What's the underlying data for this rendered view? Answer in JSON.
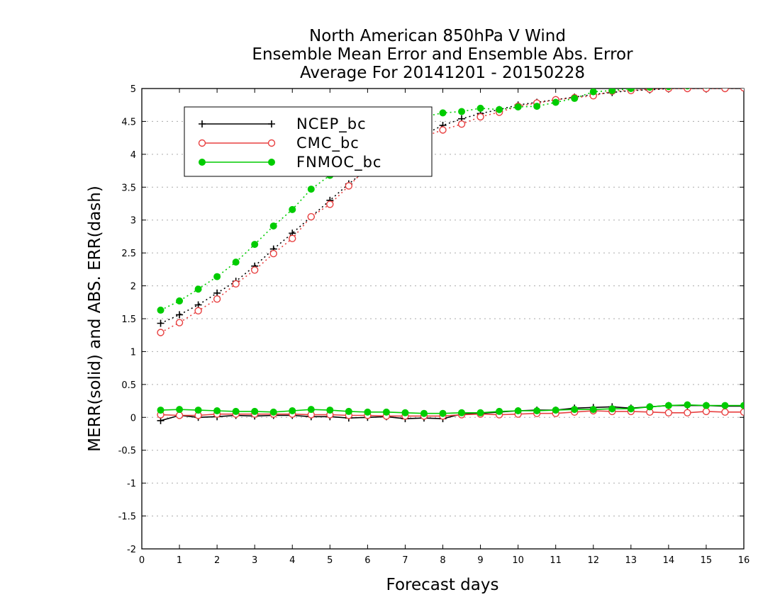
{
  "chart_data": {
    "type": "line",
    "title": [
      "North American 850hPa V Wind",
      "Ensemble Mean Error and Ensemble Abs. Error",
      "Average For 20141201 - 20150228"
    ],
    "xlabel": "Forecast days",
    "ylabel": "MERR(solid) and ABS. ERR(dash)",
    "xlim": [
      0,
      16
    ],
    "ylim": [
      -2,
      5
    ],
    "xticks": [
      "0",
      "1",
      "2",
      "3",
      "4",
      "5",
      "6",
      "7",
      "8",
      "9",
      "10",
      "11",
      "12",
      "13",
      "14",
      "15",
      "16"
    ],
    "yticks": [
      "-2",
      "-1.5",
      "-1",
      "-0.5",
      "0",
      "0.5",
      "1",
      "1.5",
      "2",
      "2.5",
      "3",
      "3.5",
      "4",
      "4.5",
      "5"
    ],
    "grid": true,
    "legend_position": "top-left",
    "x": [
      0.5,
      1,
      1.5,
      2,
      2.5,
      3,
      3.5,
      4,
      4.5,
      5,
      5.5,
      6,
      6.5,
      7,
      7.5,
      8,
      8.5,
      9,
      9.5,
      10,
      10.5,
      11,
      11.5,
      12,
      12.5,
      13,
      13.5,
      14,
      14.5,
      15,
      15.5,
      16
    ],
    "series": [
      {
        "name": "NCEP_bc",
        "color": "#000000",
        "marker": "plus",
        "merr": [
          -0.05,
          0.03,
          0.0,
          0.01,
          0.03,
          0.02,
          0.03,
          0.03,
          0.01,
          0.01,
          -0.01,
          0.0,
          0.01,
          -0.02,
          -0.01,
          -0.02,
          0.05,
          0.06,
          0.08,
          0.1,
          0.11,
          0.11,
          0.14,
          0.15,
          0.16,
          0.14,
          0.16,
          0.18,
          0.18,
          0.18,
          0.17,
          0.17
        ],
        "abserr": [
          1.43,
          1.56,
          1.71,
          1.89,
          2.07,
          2.3,
          2.56,
          2.8,
          3.05,
          3.3,
          3.55,
          3.78,
          3.98,
          4.15,
          4.3,
          4.44,
          4.54,
          4.62,
          4.68,
          4.75,
          4.79,
          4.83,
          4.87,
          4.91,
          4.94,
          4.97,
          4.98,
          5.0,
          5.01,
          5.02,
          5.03,
          5.04
        ]
      },
      {
        "name": "CMC_bc",
        "color": "#e84040",
        "marker": "circle-open",
        "merr": [
          0.04,
          0.03,
          0.03,
          0.05,
          0.05,
          0.05,
          0.05,
          0.05,
          0.04,
          0.04,
          0.03,
          0.03,
          0.02,
          0.02,
          0.02,
          0.02,
          0.04,
          0.05,
          0.04,
          0.05,
          0.06,
          0.06,
          0.08,
          0.1,
          0.09,
          0.09,
          0.08,
          0.07,
          0.07,
          0.09,
          0.08,
          0.08
        ],
        "abserr": [
          1.29,
          1.44,
          1.62,
          1.8,
          2.03,
          2.24,
          2.49,
          2.72,
          3.05,
          3.24,
          3.52,
          3.8,
          4.0,
          4.15,
          4.27,
          4.37,
          4.46,
          4.57,
          4.64,
          4.73,
          4.78,
          4.83,
          4.86,
          4.89,
          4.96,
          4.97,
          4.99,
          5.0,
          5.0,
          5.0,
          5.0,
          5.01
        ]
      },
      {
        "name": "FNMOC_bc",
        "color": "#00cc00",
        "marker": "circle-filled",
        "merr": [
          0.11,
          0.12,
          0.11,
          0.1,
          0.09,
          0.09,
          0.08,
          0.1,
          0.12,
          0.11,
          0.09,
          0.08,
          0.08,
          0.07,
          0.06,
          0.06,
          0.07,
          0.07,
          0.09,
          0.1,
          0.1,
          0.11,
          0.12,
          0.12,
          0.13,
          0.13,
          0.16,
          0.18,
          0.19,
          0.18,
          0.18,
          0.18
        ],
        "abserr": [
          1.63,
          1.77,
          1.95,
          2.14,
          2.36,
          2.63,
          2.91,
          3.16,
          3.47,
          3.68,
          3.95,
          4.2,
          4.4,
          4.5,
          4.57,
          4.63,
          4.65,
          4.7,
          4.68,
          4.72,
          4.73,
          4.79,
          4.85,
          4.95,
          4.97,
          5.0,
          5.02,
          5.03,
          5.04,
          5.05,
          5.06,
          5.07
        ]
      }
    ]
  }
}
